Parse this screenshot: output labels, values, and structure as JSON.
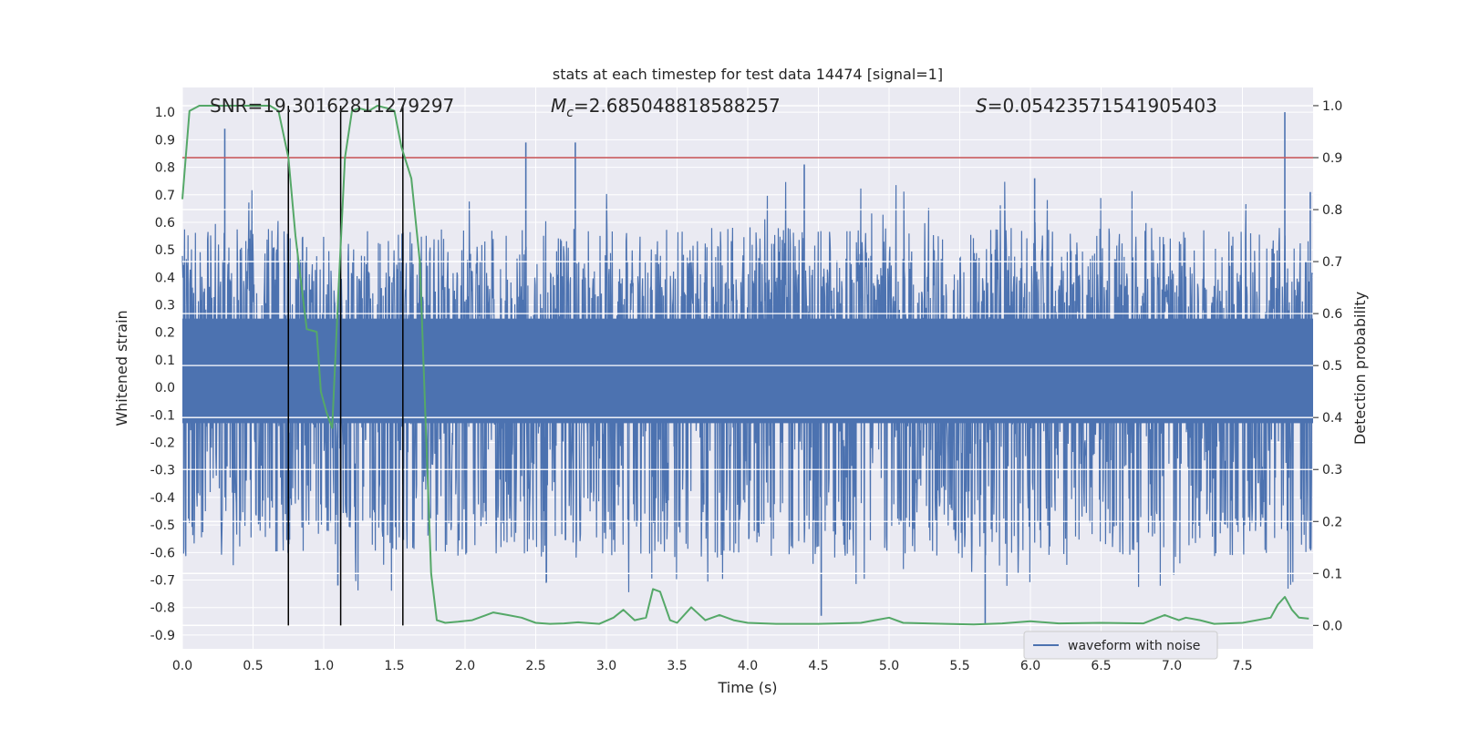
{
  "chart_data": {
    "type": "line",
    "title": "stats at each timestep for test data 14474 [signal=1]",
    "xlabel": "Time (s)",
    "ylabel": "Whitened strain",
    "y2label": "Detection probability",
    "xlim": [
      0.0,
      8.0
    ],
    "ylim": [
      -0.95,
      1.09
    ],
    "y2lim": [
      -0.045,
      1.035
    ],
    "xticks": [
      "0.0",
      "0.5",
      "1.0",
      "1.5",
      "2.0",
      "2.5",
      "3.0",
      "3.5",
      "4.0",
      "4.5",
      "5.0",
      "5.5",
      "6.0",
      "6.5",
      "7.0",
      "7.5"
    ],
    "yticks": [
      "1.0",
      "0.9",
      "0.8",
      "0.7",
      "0.6",
      "0.5",
      "0.4",
      "0.3",
      "0.2",
      "0.1",
      "0.0",
      "-0.1",
      "-0.2",
      "-0.3",
      "-0.4",
      "-0.5",
      "-0.6",
      "-0.7",
      "-0.8",
      "-0.9"
    ],
    "y2ticks": [
      "1.0",
      "0.9",
      "0.8",
      "0.7",
      "0.6",
      "0.5",
      "0.4",
      "0.3",
      "0.2",
      "0.1",
      "0.0"
    ],
    "annotations": {
      "snr": "SNR=19.30162811279297",
      "mc_symbol": "M",
      "mc_sub": "c",
      "mc_value": "=2.685048818588257",
      "s_symbol": "S",
      "s_value": "=0.05423571541905403"
    },
    "threshold": 0.9,
    "vlines": [
      0.75,
      1.12,
      1.56
    ],
    "series": [
      {
        "name": "waveform with noise",
        "color": "#4c72b0",
        "axis": "left",
        "note": "dense noise band roughly -0.3 to 0.45, spikes to about +1.0 and -0.86",
        "peaks": [
          {
            "x": 0.3,
            "y": 0.94
          },
          {
            "x": 0.68,
            "y": 0.46
          },
          {
            "x": 1.1,
            "y": -0.72
          },
          {
            "x": 2.43,
            "y": 0.89
          },
          {
            "x": 2.78,
            "y": 0.89
          },
          {
            "x": 4.4,
            "y": 0.81
          },
          {
            "x": 4.52,
            "y": -0.83
          },
          {
            "x": 5.68,
            "y": -0.86
          },
          {
            "x": 6.03,
            "y": 0.76
          },
          {
            "x": 7.8,
            "y": 1.0
          },
          {
            "x": 7.98,
            "y": 0.71
          }
        ]
      },
      {
        "name": "detection probability",
        "color": "#55a868",
        "axis": "right",
        "x": [
          0.0,
          0.05,
          0.12,
          0.3,
          0.5,
          0.62,
          0.68,
          0.75,
          0.8,
          0.88,
          0.95,
          0.98,
          1.02,
          1.06,
          1.1,
          1.15,
          1.2,
          1.25,
          1.32,
          1.38,
          1.45,
          1.5,
          1.55,
          1.62,
          1.68,
          1.72,
          1.76,
          1.8,
          1.86,
          1.95,
          2.05,
          2.15,
          2.2,
          2.3,
          2.4,
          2.5,
          2.6,
          2.7,
          2.8,
          2.95,
          3.05,
          3.12,
          3.2,
          3.28,
          3.33,
          3.38,
          3.45,
          3.5,
          3.6,
          3.7,
          3.8,
          3.9,
          4.0,
          4.2,
          4.5,
          4.8,
          4.9,
          5.0,
          5.1,
          5.4,
          5.6,
          5.8,
          6.0,
          6.2,
          6.5,
          6.8,
          6.95,
          7.0,
          7.05,
          7.1,
          7.2,
          7.3,
          7.5,
          7.7,
          7.75,
          7.8,
          7.85,
          7.9,
          7.97
        ],
        "values": [
          0.82,
          0.99,
          1.0,
          1.0,
          1.0,
          1.0,
          0.99,
          0.9,
          0.75,
          0.57,
          0.565,
          0.45,
          0.41,
          0.38,
          0.62,
          0.9,
          0.99,
          0.995,
          0.99,
          1.0,
          0.995,
          0.99,
          0.92,
          0.86,
          0.7,
          0.4,
          0.1,
          0.01,
          0.005,
          0.007,
          0.01,
          0.02,
          0.025,
          0.02,
          0.015,
          0.005,
          0.003,
          0.004,
          0.006,
          0.003,
          0.015,
          0.03,
          0.01,
          0.015,
          0.07,
          0.065,
          0.01,
          0.005,
          0.035,
          0.01,
          0.02,
          0.01,
          0.005,
          0.003,
          0.003,
          0.005,
          0.01,
          0.015,
          0.005,
          0.003,
          0.002,
          0.004,
          0.008,
          0.004,
          0.005,
          0.004,
          0.02,
          0.015,
          0.01,
          0.015,
          0.01,
          0.003,
          0.005,
          0.015,
          0.04,
          0.055,
          0.03,
          0.015,
          0.013
        ]
      }
    ]
  },
  "legend": {
    "label": "waveform with noise",
    "position": "lower-right"
  },
  "colors": {
    "plot_bg": "#eaeaf2",
    "grid": "#ffffff",
    "waveform": "#4c72b0",
    "probability": "#55a868",
    "threshold": "#c44e52",
    "vline": "#000000"
  }
}
